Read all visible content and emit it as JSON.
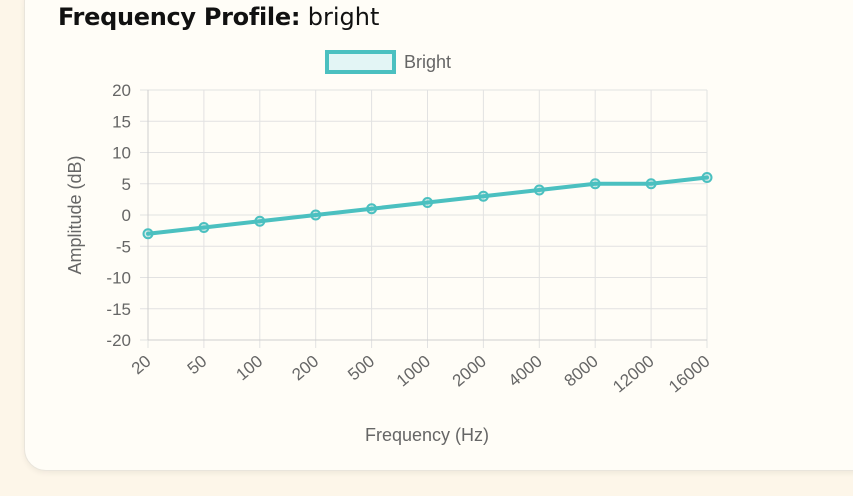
{
  "heading": {
    "label": "Frequency Profile:",
    "value": "bright"
  },
  "chart_data": {
    "type": "line",
    "categories": [
      "20",
      "50",
      "100",
      "200",
      "500",
      "1000",
      "2000",
      "4000",
      "8000",
      "12000",
      "16000"
    ],
    "series": [
      {
        "name": "Bright",
        "values": [
          -3,
          -2,
          -1,
          0,
          1,
          2,
          3,
          4,
          5,
          5,
          6
        ],
        "color": "#4bc0c0"
      }
    ],
    "xlabel": "Frequency (Hz)",
    "ylabel": "Amplitude (dB)",
    "ylim": [
      -20,
      20
    ],
    "yticks": [
      "20",
      "15",
      "10",
      "5",
      "0",
      "-5",
      "-10",
      "-15",
      "-20"
    ],
    "grid": true,
    "legend": "top-center"
  }
}
